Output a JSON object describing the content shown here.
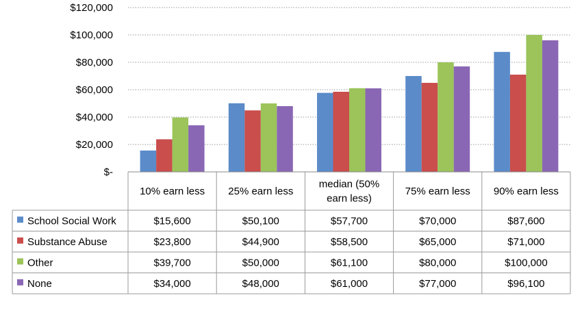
{
  "chart_data": {
    "type": "bar",
    "categories": [
      "10% earn less",
      "25% earn less",
      "median (50% earn less)",
      "75% earn less",
      "90% earn less"
    ],
    "category_lines": [
      [
        "10% earn less"
      ],
      [
        "25% earn less"
      ],
      [
        "median (50%",
        "earn less)"
      ],
      [
        "75% earn less"
      ],
      [
        "90% earn less"
      ]
    ],
    "series": [
      {
        "name": "School Social Work",
        "color": "#5b8bc9",
        "values": [
          15600,
          50100,
          57700,
          70000,
          87600
        ],
        "labels": [
          "$15,600",
          "$50,100",
          "$57,700",
          "$70,000",
          "$87,600"
        ]
      },
      {
        "name": "Substance Abuse",
        "color": "#c94e4c",
        "values": [
          23800,
          44900,
          58500,
          65000,
          71000
        ],
        "labels": [
          "$23,800",
          "$44,900",
          "$58,500",
          "$65,000",
          "$71,000"
        ]
      },
      {
        "name": "Other",
        "color": "#9cc45a",
        "values": [
          39700,
          50000,
          61100,
          80000,
          100000
        ],
        "labels": [
          "$39,700",
          "$50,000",
          "$61,100",
          "$80,000",
          "$100,000"
        ]
      },
      {
        "name": "None",
        "color": "#8a67b4",
        "values": [
          34000,
          48000,
          61000,
          77000,
          96100
        ],
        "labels": [
          "$34,000",
          "$48,000",
          "$61,000",
          "$77,000",
          "$96,100"
        ]
      }
    ],
    "ylim": [
      0,
      120000
    ],
    "yticks": [
      0,
      20000,
      40000,
      60000,
      80000,
      100000,
      120000
    ],
    "ytick_labels": [
      "$-",
      "$20,000",
      "$40,000",
      "$60,000",
      "$80,000",
      "$100,000",
      "$120,000"
    ],
    "grid": true,
    "legend": "data-table"
  }
}
